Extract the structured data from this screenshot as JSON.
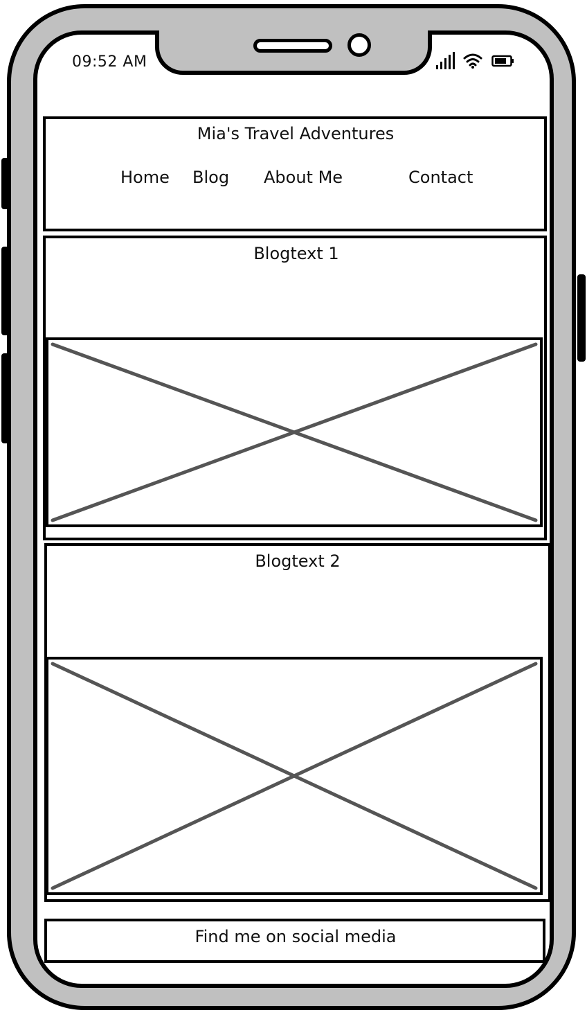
{
  "status_bar": {
    "time": "09:52 AM",
    "icons": [
      "signal-icon",
      "wifi-icon",
      "battery-icon"
    ]
  },
  "header": {
    "title": "Mia's Travel Adventures",
    "nav": [
      {
        "label": "Home"
      },
      {
        "label": "Blog"
      },
      {
        "label": "About Me"
      },
      {
        "label": "Contact"
      }
    ]
  },
  "posts": [
    {
      "title": "Blogtext 1",
      "image": "image-placeholder"
    },
    {
      "title": "Blogtext 2",
      "image": "image-placeholder"
    }
  ],
  "footer": {
    "text": "Find me on social media"
  },
  "colors": {
    "frame": "#c0c0c0",
    "outline": "#000000",
    "placeholder_cross": "#555555",
    "screen": "#ffffff"
  }
}
